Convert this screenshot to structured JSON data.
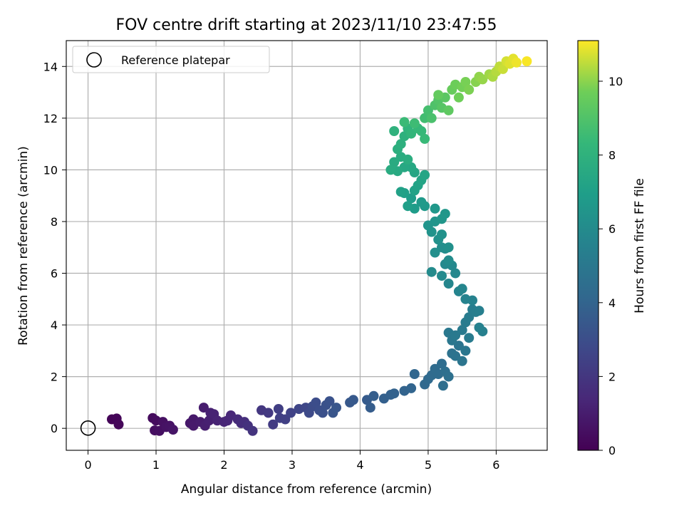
{
  "chart_data": {
    "type": "scatter",
    "title": "FOV centre drift starting at 2023/11/10 23:47:55",
    "xlabel": "Angular distance from reference (arcmin)",
    "ylabel": "Rotation from reference (arcmin)",
    "xlim": [
      -0.32,
      6.75
    ],
    "ylim": [
      -0.85,
      15.0
    ],
    "xticks": [
      0,
      1,
      2,
      3,
      4,
      5,
      6
    ],
    "yticks": [
      0,
      2,
      4,
      6,
      8,
      10,
      12,
      14
    ],
    "grid": true,
    "legend": {
      "position": "top-left",
      "label": "Reference platepar"
    },
    "reference_point": {
      "x": 0,
      "y": 0
    },
    "colorbar": {
      "label": "Hours from first FF file",
      "range": [
        0,
        11.1
      ],
      "ticks": [
        0,
        2,
        4,
        6,
        8,
        10
      ],
      "colormap": "viridis"
    },
    "series": [
      {
        "points": [
          [
            0.35,
            0.35,
            0.1
          ],
          [
            0.42,
            0.38,
            0.15
          ],
          [
            0.45,
            0.15,
            0.2
          ],
          [
            0.95,
            0.4,
            0.35
          ],
          [
            1.0,
            0.3,
            0.4
          ],
          [
            0.98,
            -0.08,
            0.45
          ],
          [
            1.05,
            -0.1,
            0.5
          ],
          [
            1.1,
            0.25,
            0.55
          ],
          [
            1.15,
            0.05,
            0.6
          ],
          [
            1.2,
            0.1,
            0.65
          ],
          [
            1.25,
            -0.05,
            0.7
          ],
          [
            1.5,
            0.2,
            0.8
          ],
          [
            1.55,
            0.35,
            0.85
          ],
          [
            1.55,
            0.1,
            0.9
          ],
          [
            1.65,
            0.25,
            0.95
          ],
          [
            1.7,
            0.8,
            1.0
          ],
          [
            1.72,
            0.1,
            1.05
          ],
          [
            1.78,
            0.3,
            1.1
          ],
          [
            1.8,
            0.6,
            1.15
          ],
          [
            1.85,
            0.55,
            1.2
          ],
          [
            1.9,
            0.3,
            1.25
          ],
          [
            2.0,
            0.25,
            1.3
          ],
          [
            2.05,
            0.3,
            1.35
          ],
          [
            2.1,
            0.5,
            1.4
          ],
          [
            2.2,
            0.35,
            1.5
          ],
          [
            2.25,
            0.2,
            1.6
          ],
          [
            2.3,
            0.25,
            1.7
          ],
          [
            2.35,
            0.1,
            1.8
          ],
          [
            2.42,
            -0.1,
            1.9
          ],
          [
            2.55,
            0.7,
            2.0
          ],
          [
            2.65,
            0.6,
            2.1
          ],
          [
            2.72,
            0.15,
            2.2
          ],
          [
            2.8,
            0.75,
            2.3
          ],
          [
            2.82,
            0.4,
            2.35
          ],
          [
            2.9,
            0.35,
            2.4
          ],
          [
            2.98,
            0.6,
            2.5
          ],
          [
            3.1,
            0.75,
            2.6
          ],
          [
            3.2,
            0.8,
            2.7
          ],
          [
            3.25,
            0.6,
            2.8
          ],
          [
            3.3,
            0.85,
            2.9
          ],
          [
            3.35,
            1.0,
            2.95
          ],
          [
            3.4,
            0.7,
            3.0
          ],
          [
            3.45,
            0.6,
            3.1
          ],
          [
            3.5,
            0.9,
            3.15
          ],
          [
            3.55,
            1.05,
            3.2
          ],
          [
            3.6,
            0.6,
            3.3
          ],
          [
            3.65,
            0.8,
            3.35
          ],
          [
            3.85,
            1.0,
            3.45
          ],
          [
            3.9,
            1.1,
            3.5
          ],
          [
            4.1,
            1.1,
            3.6
          ],
          [
            4.15,
            0.8,
            3.65
          ],
          [
            4.2,
            1.25,
            3.7
          ],
          [
            4.35,
            1.15,
            3.8
          ],
          [
            4.45,
            1.3,
            3.85
          ],
          [
            4.5,
            1.35,
            3.9
          ],
          [
            4.65,
            1.45,
            4.0
          ],
          [
            4.75,
            1.55,
            4.05
          ],
          [
            4.8,
            2.1,
            4.1
          ],
          [
            4.95,
            1.7,
            4.2
          ],
          [
            5.0,
            1.9,
            4.25
          ],
          [
            5.05,
            2.05,
            4.3
          ],
          [
            5.1,
            2.3,
            4.35
          ],
          [
            5.15,
            2.1,
            4.4
          ],
          [
            5.2,
            2.5,
            4.45
          ],
          [
            5.22,
            1.65,
            4.5
          ],
          [
            5.25,
            2.2,
            4.55
          ],
          [
            5.3,
            2.0,
            4.6
          ],
          [
            5.35,
            2.9,
            4.7
          ],
          [
            5.4,
            2.8,
            4.75
          ],
          [
            5.45,
            3.2,
            4.8
          ],
          [
            5.5,
            2.6,
            4.85
          ],
          [
            5.55,
            3.0,
            4.9
          ],
          [
            5.35,
            3.4,
            4.95
          ],
          [
            5.3,
            3.7,
            5.0
          ],
          [
            5.4,
            3.6,
            5.05
          ],
          [
            5.5,
            3.8,
            5.1
          ],
          [
            5.55,
            4.1,
            5.15
          ],
          [
            5.6,
            3.5,
            5.2
          ],
          [
            5.6,
            4.3,
            5.25
          ],
          [
            5.65,
            4.6,
            5.3
          ],
          [
            5.7,
            4.5,
            5.35
          ],
          [
            5.75,
            4.55,
            5.4
          ],
          [
            5.8,
            3.75,
            5.45
          ],
          [
            5.75,
            3.9,
            5.5
          ],
          [
            5.65,
            4.95,
            5.55
          ],
          [
            5.55,
            5.0,
            5.6
          ],
          [
            5.45,
            5.3,
            5.65
          ],
          [
            5.5,
            5.4,
            5.7
          ],
          [
            5.3,
            5.6,
            5.75
          ],
          [
            5.4,
            6.0,
            5.8
          ],
          [
            5.35,
            6.3,
            5.85
          ],
          [
            5.25,
            6.35,
            5.9
          ],
          [
            5.2,
            5.9,
            5.95
          ],
          [
            5.05,
            6.05,
            6.0
          ],
          [
            5.3,
            6.5,
            6.05
          ],
          [
            5.25,
            6.95,
            6.1
          ],
          [
            5.2,
            7.0,
            6.15
          ],
          [
            5.1,
            6.8,
            6.2
          ],
          [
            5.3,
            7.0,
            6.25
          ],
          [
            5.15,
            7.3,
            6.3
          ],
          [
            5.2,
            7.5,
            6.35
          ],
          [
            5.05,
            7.6,
            6.4
          ],
          [
            5.0,
            7.85,
            6.45
          ],
          [
            5.1,
            8.0,
            6.5
          ],
          [
            5.2,
            8.1,
            6.55
          ],
          [
            5.25,
            8.3,
            6.6
          ],
          [
            5.1,
            8.5,
            6.65
          ],
          [
            4.95,
            8.6,
            6.7
          ],
          [
            4.9,
            8.75,
            6.75
          ],
          [
            4.8,
            8.5,
            6.85
          ],
          [
            4.75,
            8.9,
            6.9
          ],
          [
            4.7,
            8.6,
            7.0
          ],
          [
            4.65,
            9.1,
            7.05
          ],
          [
            4.6,
            9.15,
            7.1
          ],
          [
            4.8,
            9.2,
            7.15
          ],
          [
            4.85,
            9.4,
            7.2
          ],
          [
            4.9,
            9.6,
            7.25
          ],
          [
            4.95,
            9.8,
            7.3
          ],
          [
            4.8,
            9.9,
            7.35
          ],
          [
            4.75,
            10.1,
            7.45
          ],
          [
            4.65,
            10.1,
            7.5
          ],
          [
            4.55,
            9.95,
            7.55
          ],
          [
            4.5,
            10.3,
            7.6
          ],
          [
            4.45,
            10.0,
            7.65
          ],
          [
            4.6,
            10.5,
            7.7
          ],
          [
            4.7,
            10.4,
            7.75
          ],
          [
            4.55,
            10.8,
            7.85
          ],
          [
            4.6,
            11.0,
            7.9
          ],
          [
            4.65,
            11.3,
            7.95
          ],
          [
            4.5,
            11.5,
            8.0
          ],
          [
            4.7,
            11.6,
            8.1
          ],
          [
            4.75,
            11.4,
            8.2
          ],
          [
            4.85,
            11.6,
            8.3
          ],
          [
            4.9,
            11.5,
            8.35
          ],
          [
            4.95,
            11.2,
            8.4
          ],
          [
            4.65,
            11.85,
            8.45
          ],
          [
            4.8,
            11.8,
            8.55
          ],
          [
            4.95,
            12.0,
            8.65
          ],
          [
            5.0,
            12.3,
            8.75
          ],
          [
            5.05,
            12.0,
            8.85
          ],
          [
            5.1,
            12.5,
            8.95
          ],
          [
            5.15,
            12.7,
            9.05
          ],
          [
            5.2,
            12.4,
            9.15
          ],
          [
            5.25,
            12.8,
            9.25
          ],
          [
            5.3,
            12.3,
            9.35
          ],
          [
            5.15,
            12.9,
            9.45
          ],
          [
            5.35,
            13.1,
            9.55
          ],
          [
            5.4,
            13.3,
            9.65
          ],
          [
            5.45,
            12.8,
            9.7
          ],
          [
            5.5,
            13.2,
            9.75
          ],
          [
            5.55,
            13.4,
            9.8
          ],
          [
            5.6,
            13.1,
            9.85
          ],
          [
            5.7,
            13.4,
            9.95
          ],
          [
            5.75,
            13.6,
            10.05
          ],
          [
            5.8,
            13.5,
            10.1
          ],
          [
            5.9,
            13.7,
            10.2
          ],
          [
            5.95,
            13.6,
            10.3
          ],
          [
            6.0,
            13.8,
            10.4
          ],
          [
            6.05,
            14.0,
            10.5
          ],
          [
            6.1,
            13.9,
            10.6
          ],
          [
            6.15,
            14.2,
            10.7
          ],
          [
            6.2,
            14.1,
            10.8
          ],
          [
            6.25,
            14.3,
            10.85
          ],
          [
            6.3,
            14.15,
            10.95
          ],
          [
            6.45,
            14.2,
            11.05
          ]
        ]
      }
    ]
  }
}
